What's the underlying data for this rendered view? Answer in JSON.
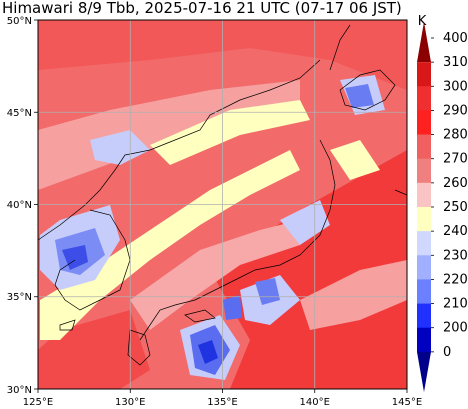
{
  "title": "Himawari 8/9 Tbb, 2025-07-16 21 UTC (07-17 06 JST)",
  "map": {
    "lon_range": [
      125,
      145
    ],
    "lat_range": [
      30,
      50
    ],
    "lon_ticks": [
      "125°E",
      "130°E",
      "135°E",
      "140°E",
      "145°E"
    ],
    "lat_ticks": [
      "50°N",
      "45°N",
      "40°N",
      "35°N",
      "30°N"
    ],
    "grid": true
  },
  "colorbar": {
    "unit": "K",
    "labels": [
      "400",
      "310",
      "300",
      "290",
      "280",
      "270",
      "260",
      "250",
      "240",
      "230",
      "220",
      "210",
      "200",
      "0"
    ],
    "colors": [
      "#8b0000",
      "#d81818",
      "#f03030",
      "#ff2020",
      "#f06060",
      "#f08080",
      "#fbc4c4",
      "#ffffc0",
      "#d0d8ff",
      "#a0b0ff",
      "#6a80ff",
      "#2030ff",
      "#0000c0",
      "#00008b"
    ]
  }
}
